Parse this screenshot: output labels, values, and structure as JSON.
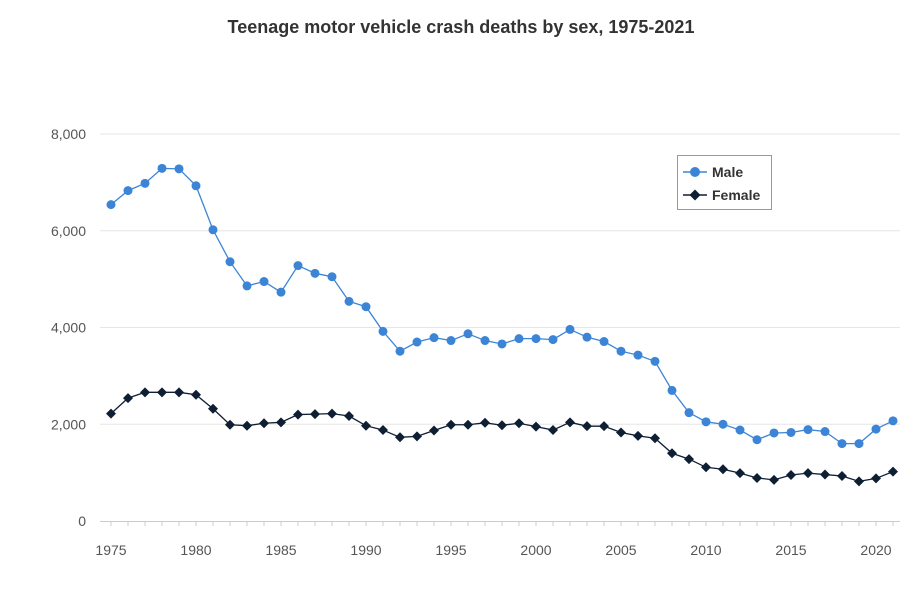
{
  "chart_data": {
    "type": "line",
    "title": "Teenage motor vehicle crash deaths by sex, 1975-2021",
    "xlabel": "",
    "ylabel": "",
    "x": [
      1975,
      1976,
      1977,
      1978,
      1979,
      1980,
      1981,
      1982,
      1983,
      1984,
      1985,
      1986,
      1987,
      1988,
      1989,
      1990,
      1991,
      1992,
      1993,
      1994,
      1995,
      1996,
      1997,
      1998,
      1999,
      2000,
      2001,
      2002,
      2003,
      2004,
      2005,
      2006,
      2007,
      2008,
      2009,
      2010,
      2011,
      2012,
      2013,
      2014,
      2015,
      2016,
      2017,
      2018,
      2019,
      2020,
      2021
    ],
    "xlim": [
      1975,
      2021
    ],
    "ylim": [
      0,
      8000
    ],
    "x_ticks": [
      {
        "value": 1975,
        "label": "1975"
      },
      {
        "value": 1980,
        "label": "1980"
      },
      {
        "value": 1985,
        "label": "1985"
      },
      {
        "value": 1990,
        "label": "1990"
      },
      {
        "value": 1995,
        "label": "1995"
      },
      {
        "value": 2000,
        "label": "2000"
      },
      {
        "value": 2005,
        "label": "2005"
      },
      {
        "value": 2010,
        "label": "2010"
      },
      {
        "value": 2015,
        "label": "2015"
      },
      {
        "value": 2020,
        "label": "2020"
      }
    ],
    "y_ticks": [
      {
        "value": 0,
        "label": "0"
      },
      {
        "value": 2000,
        "label": "2,000"
      },
      {
        "value": 4000,
        "label": "4,000"
      },
      {
        "value": 6000,
        "label": "6,000"
      },
      {
        "value": 8000,
        "label": "8,000"
      }
    ],
    "grid": true,
    "legend_position": "top-right",
    "series": [
      {
        "name": "Male",
        "color": "#3c85d6",
        "marker": "circle",
        "values": [
          6540,
          6830,
          6980,
          7290,
          7280,
          6930,
          6020,
          5360,
          4860,
          4950,
          4730,
          5280,
          5120,
          5050,
          4540,
          4430,
          3920,
          3510,
          3700,
          3790,
          3730,
          3870,
          3730,
          3660,
          3770,
          3770,
          3750,
          3960,
          3800,
          3710,
          3510,
          3430,
          3300,
          2700,
          2240,
          2050,
          2000,
          1880,
          1680,
          1820,
          1830,
          1890,
          1850,
          1600,
          1600,
          1900,
          2070
        ]
      },
      {
        "name": "Female",
        "color": "#0e1e33",
        "marker": "diamond",
        "values": [
          2220,
          2540,
          2660,
          2660,
          2660,
          2610,
          2320,
          1990,
          1970,
          2020,
          2040,
          2200,
          2210,
          2220,
          2170,
          1970,
          1880,
          1730,
          1750,
          1870,
          1990,
          1990,
          2030,
          1980,
          2020,
          1950,
          1880,
          2040,
          1960,
          1960,
          1830,
          1760,
          1710,
          1400,
          1280,
          1110,
          1070,
          990,
          890,
          850,
          950,
          990,
          960,
          930,
          820,
          880,
          1020
        ]
      }
    ]
  }
}
